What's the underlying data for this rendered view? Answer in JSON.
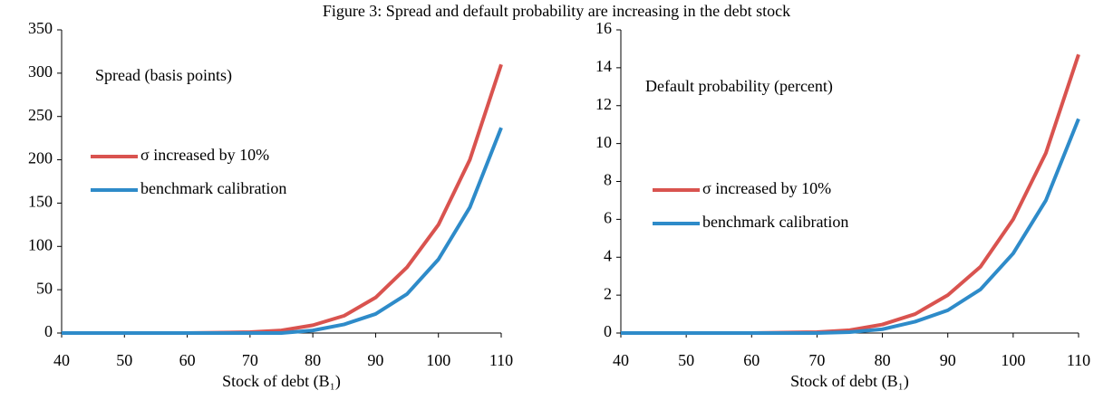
{
  "title": "Figure 3: Spread and default probability are increasing in the debt stock",
  "chart_data": [
    {
      "type": "line",
      "annotation": "Spread (basis points)",
      "xlabel": "Stock of debt (B₁)",
      "x": [
        40,
        50,
        60,
        70,
        75,
        80,
        85,
        90,
        95,
        100,
        105,
        110
      ],
      "series": [
        {
          "name": "σ increased by 10%",
          "color": "#d9534f",
          "values": [
            0,
            0,
            0,
            1,
            3,
            9,
            20,
            41,
            76,
            125,
            200,
            310
          ]
        },
        {
          "name": "benchmark calibration",
          "color": "#2e8bc9",
          "values": [
            0,
            0,
            0,
            0,
            0,
            3,
            10,
            22,
            45,
            85,
            145,
            237
          ]
        }
      ],
      "xlim": [
        40,
        110
      ],
      "xticks": [
        40,
        50,
        60,
        70,
        80,
        90,
        100,
        110
      ],
      "ylim": [
        0,
        350
      ],
      "yticks": [
        0,
        50,
        100,
        150,
        200,
        250,
        300,
        350
      ]
    },
    {
      "type": "line",
      "annotation": "Default probability (percent)",
      "xlabel": "Stock of debt (B₁)",
      "x": [
        40,
        50,
        60,
        70,
        75,
        80,
        85,
        90,
        95,
        100,
        105,
        110
      ],
      "series": [
        {
          "name": "σ increased by 10%",
          "color": "#d9534f",
          "values": [
            0,
            0,
            0,
            0.05,
            0.15,
            0.45,
            1.0,
            2.0,
            3.5,
            6.0,
            9.5,
            14.7
          ]
        },
        {
          "name": "benchmark calibration",
          "color": "#2e8bc9",
          "values": [
            0,
            0,
            0,
            0,
            0.05,
            0.2,
            0.6,
            1.2,
            2.3,
            4.2,
            7.0,
            11.3
          ]
        }
      ],
      "xlim": [
        40,
        110
      ],
      "xticks": [
        40,
        50,
        60,
        70,
        80,
        90,
        100,
        110
      ],
      "ylim": [
        0,
        16
      ],
      "yticks": [
        0,
        2,
        4,
        6,
        8,
        10,
        12,
        14,
        16
      ]
    }
  ]
}
